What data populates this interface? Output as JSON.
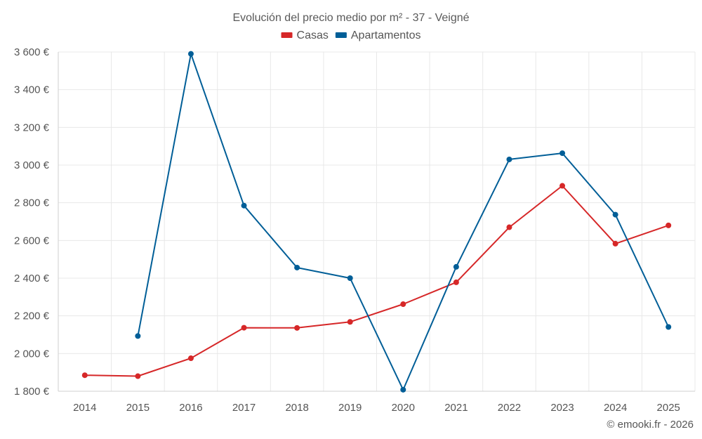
{
  "chart_data": {
    "type": "line",
    "title": "Evolución del precio medio por m² - 37 - Veigné",
    "categories": [
      "2014",
      "2015",
      "2016",
      "2017",
      "2018",
      "2019",
      "2020",
      "2021",
      "2022",
      "2023",
      "2024",
      "2025"
    ],
    "series": [
      {
        "name": "Casas",
        "color": "#d62728",
        "values": [
          1885,
          1880,
          1975,
          2137,
          2136,
          2168,
          2262,
          2378,
          2670,
          2890,
          2583,
          2680
        ]
      },
      {
        "name": "Apartamentos",
        "color": "#005e97",
        "values": [
          null,
          2093,
          3590,
          2785,
          2456,
          2400,
          1808,
          2460,
          3030,
          3063,
          2737,
          2141
        ]
      }
    ],
    "ylim": [
      1800,
      3600
    ],
    "yticks": [
      1800,
      2000,
      2200,
      2400,
      2600,
      2800,
      3000,
      3200,
      3400,
      3600
    ],
    "ytick_labels": [
      "1 800 €",
      "2 000 €",
      "2 200 €",
      "2 400 €",
      "2 600 €",
      "2 800 €",
      "3 000 €",
      "3 200 €",
      "3 400 €",
      "3 600 €"
    ],
    "grid": true,
    "legend_position": "top-center",
    "xlabel": "",
    "ylabel": ""
  },
  "credit": "© emooki.fr - 2026"
}
